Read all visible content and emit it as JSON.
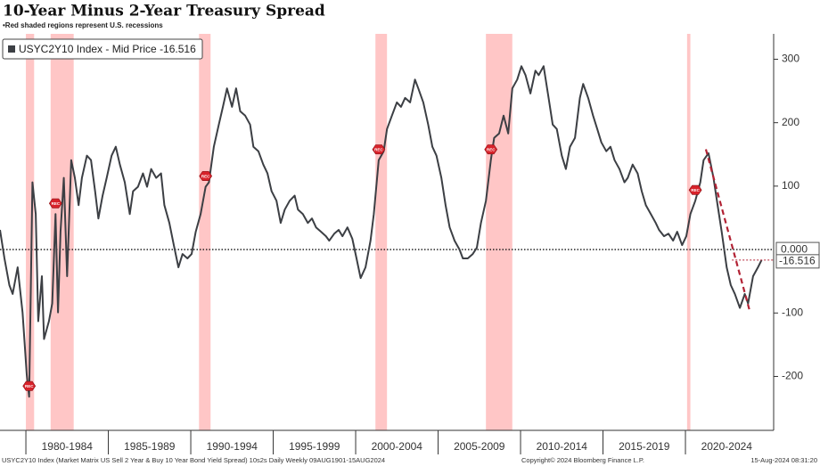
{
  "chart_data": {
    "type": "line",
    "title": "10-Year Minus 2-Year Treasury Spread",
    "subtitle": "•Red shaded regions represent U.S. recessions",
    "footer_left": "USYC2Y10 Index (Market Matrix US Sell 2 Year & Buy 10 Year Bond Yield Spread) 10s2s Daily  Weekly 09AUG1901-15AUG2024",
    "footer_center": "Copyright© 2024 Bloomberg Finance L.P.",
    "footer_right": "15-Aug-2024 08:31:20",
    "xlim": [
      1978.43,
      2025.35
    ],
    "ylim": [
      -285,
      340
    ],
    "yticks": [
      -200,
      -100,
      100,
      200,
      300
    ],
    "xticks": [
      {
        "value": 1980,
        "label": "1980-1984"
      },
      {
        "value": 1985,
        "label": "1985-1989"
      },
      {
        "value": 1990,
        "label": "1990-1994"
      },
      {
        "value": 1995,
        "label": "1995-1999"
      },
      {
        "value": 2000,
        "label": "2000-2004"
      },
      {
        "value": 2005,
        "label": "2005-2009"
      },
      {
        "value": 2010,
        "label": "2010-2014"
      },
      {
        "value": 2015,
        "label": "2015-2019"
      },
      {
        "value": 2020,
        "label": "2020-2024"
      }
    ],
    "zero_line": {
      "value": 0,
      "label": "0.000"
    },
    "last_value": -16.516,
    "recessions": [
      [
        1980.0,
        1980.5
      ],
      [
        1981.5,
        1982.9
      ],
      [
        1990.5,
        1991.2
      ],
      [
        2001.2,
        2001.9
      ],
      [
        2007.9,
        2009.5
      ],
      [
        2020.1,
        2020.3
      ]
    ],
    "recession_color": "#ffb3b3",
    "rec_label": "REC",
    "rec_markers": [
      1980.2,
      1981.8,
      1990.9,
      2001.4,
      2008.2,
      2020.6
    ],
    "trend_line": {
      "x": [
        2021.24,
        2023.9
      ],
      "y": [
        158,
        -97
      ],
      "color": "#b22234"
    },
    "series": [
      {
        "name": "USYC2Y10 Index - Mid Price -16.516",
        "color": "#3c3f44",
        "x": [
          1978.43,
          1978.7,
          1979.0,
          1979.2,
          1979.5,
          1979.8,
          1980.05,
          1980.2,
          1980.4,
          1980.6,
          1980.75,
          1980.97,
          1981.1,
          1981.4,
          1981.6,
          1981.8,
          1981.95,
          1982.1,
          1982.3,
          1982.5,
          1982.75,
          1982.97,
          1983.2,
          1983.4,
          1983.7,
          1983.95,
          1984.2,
          1984.4,
          1984.65,
          1984.9,
          1985.2,
          1985.45,
          1985.7,
          1986.0,
          1986.3,
          1986.5,
          1986.8,
          1987.1,
          1987.35,
          1987.6,
          1987.9,
          1988.2,
          1988.4,
          1988.7,
          1988.97,
          1989.25,
          1989.5,
          1989.8,
          1990.05,
          1990.3,
          1990.6,
          1990.9,
          1991.1,
          1991.4,
          1991.7,
          1991.95,
          1992.2,
          1992.5,
          1992.75,
          1993.0,
          1993.3,
          1993.6,
          1993.8,
          1994.1,
          1994.4,
          1994.65,
          1994.9,
          1995.2,
          1995.45,
          1995.7,
          1996.0,
          1996.3,
          1996.5,
          1996.8,
          1997.1,
          1997.35,
          1997.6,
          1997.9,
          1998.2,
          1998.4,
          1998.7,
          1998.97,
          1999.2,
          1999.5,
          1999.8,
          2000.05,
          2000.3,
          2000.6,
          2000.9,
          2001.1,
          2001.4,
          2001.7,
          2001.9,
          2002.2,
          2002.5,
          2002.75,
          2003.0,
          2003.3,
          2003.6,
          2003.8,
          2004.1,
          2004.4,
          2004.65,
          2004.9,
          2005.2,
          2005.45,
          2005.7,
          2006.0,
          2006.3,
          2006.5,
          2006.8,
          2007.1,
          2007.35,
          2007.6,
          2007.9,
          2008.2,
          2008.4,
          2008.7,
          2008.97,
          2009.25,
          2009.5,
          2009.8,
          2010.05,
          2010.3,
          2010.6,
          2010.9,
          2011.1,
          2011.4,
          2011.7,
          2011.95,
          2012.2,
          2012.5,
          2012.75,
          2013.0,
          2013.3,
          2013.6,
          2013.8,
          2014.1,
          2014.4,
          2014.65,
          2014.9,
          2015.2,
          2015.45,
          2015.7,
          2016.0,
          2016.3,
          2016.5,
          2016.8,
          2017.1,
          2017.35,
          2017.6,
          2017.9,
          2018.2,
          2018.4,
          2018.7,
          2018.97,
          2019.25,
          2019.5,
          2019.8,
          2020.05,
          2020.3,
          2020.6,
          2020.9,
          2021.1,
          2021.4,
          2021.7,
          2021.95,
          2022.2,
          2022.5,
          2022.75,
          2023.0,
          2023.3,
          2023.6,
          2023.8,
          2024.1,
          2024.4,
          2024.62
        ],
        "values": [
          31,
          -14,
          -56,
          -70,
          -28,
          -99,
          -197,
          -232,
          106,
          56,
          -113,
          -42,
          -141,
          -113,
          -85,
          56,
          -99,
          28,
          113,
          -42,
          141,
          113,
          70,
          113,
          148,
          141,
          92,
          49,
          85,
          113,
          148,
          162,
          134,
          106,
          56,
          92,
          99,
          120,
          99,
          127,
          113,
          120,
          70,
          42,
          7,
          -28,
          -7,
          -14,
          -7,
          28,
          56,
          99,
          106,
          162,
          197,
          225,
          254,
          225,
          254,
          218,
          211,
          197,
          162,
          155,
          134,
          120,
          92,
          77,
          42,
          63,
          77,
          85,
          63,
          56,
          42,
          49,
          35,
          28,
          21,
          14,
          25,
          31,
          21,
          35,
          17,
          -14,
          -45,
          -28,
          14,
          56,
          141,
          155,
          190,
          211,
          232,
          225,
          239,
          232,
          268,
          254,
          232,
          197,
          162,
          148,
          113,
          70,
          35,
          14,
          0,
          -14,
          -14,
          -7,
          3,
          42,
          77,
          141,
          176,
          183,
          211,
          183,
          254,
          268,
          289,
          275,
          246,
          282,
          275,
          289,
          239,
          197,
          190,
          148,
          127,
          162,
          176,
          239,
          261,
          239,
          211,
          190,
          169,
          155,
          162,
          141,
          127,
          106,
          113,
          134,
          120,
          92,
          70,
          56,
          42,
          31,
          21,
          25,
          14,
          28,
          7,
          21,
          56,
          77,
          106,
          141,
          152,
          113,
          70,
          28,
          -28,
          -56,
          -70,
          -92,
          -70,
          -85,
          -42,
          -28,
          -16.516
        ]
      }
    ]
  }
}
